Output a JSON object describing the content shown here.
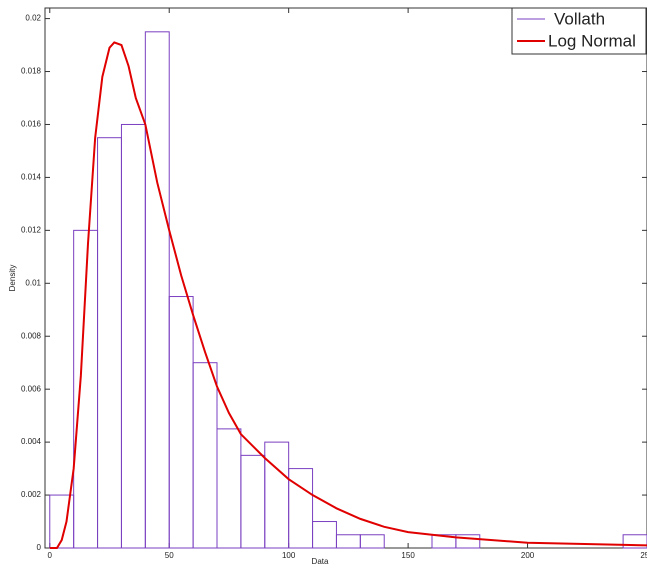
{
  "chart_data": {
    "type": "histogram",
    "xlabel": "Data",
    "ylabel": "Density",
    "bins": [
      0,
      10,
      20,
      30,
      40,
      50,
      60,
      70,
      80,
      90,
      100,
      110,
      120,
      130,
      140,
      150,
      160,
      170,
      180,
      190,
      200,
      210,
      220,
      230,
      240,
      250
    ],
    "series": [
      {
        "name": "Vollath",
        "type": "histogram",
        "color": "#7a3fc0",
        "values": [
          0.002,
          0.012,
          0.0155,
          0.016,
          0.0195,
          0.0095,
          0.007,
          0.0045,
          0.0035,
          0.004,
          0.003,
          0.001,
          0.0005,
          0.0005,
          0,
          0,
          0.0005,
          0.0005,
          0,
          0,
          0,
          0,
          0,
          0,
          0.0005
        ]
      },
      {
        "name": "Log Normal",
        "type": "line",
        "color": "#e00000",
        "x": [
          0,
          3,
          5,
          7,
          10,
          13,
          16,
          19,
          22,
          25,
          27,
          30,
          33,
          36,
          40,
          45,
          50,
          55,
          60,
          65,
          70,
          75,
          80,
          90,
          100,
          110,
          120,
          130,
          140,
          150,
          170,
          200,
          250
        ],
        "values": [
          0,
          0,
          0.0003,
          0.001,
          0.003,
          0.0065,
          0.0115,
          0.0155,
          0.0178,
          0.0189,
          0.0191,
          0.019,
          0.0182,
          0.017,
          0.016,
          0.0138,
          0.012,
          0.0103,
          0.0088,
          0.0074,
          0.0061,
          0.0051,
          0.0043,
          0.0034,
          0.0026,
          0.002,
          0.0015,
          0.0011,
          0.0008,
          0.0006,
          0.0004,
          0.0002,
          0.0001
        ]
      }
    ],
    "xlim": [
      -2,
      250
    ],
    "xticks": [
      0,
      50,
      100,
      150,
      200,
      250
    ],
    "ylim": [
      0,
      0.0204
    ],
    "yticks": [
      0,
      0.002,
      0.004,
      0.006,
      0.008,
      0.01,
      0.012,
      0.014,
      0.016,
      0.018,
      0.02
    ],
    "legend": "upper right",
    "grid": false
  }
}
